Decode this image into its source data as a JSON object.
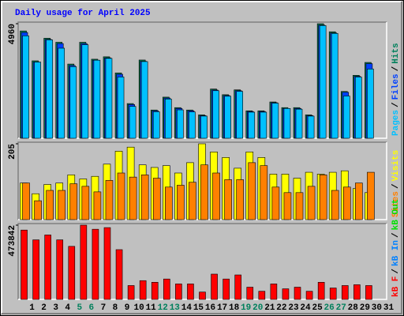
{
  "title": "Daily usage for April 2025",
  "chart_data": [
    {
      "type": "bar",
      "categories": [
        1,
        2,
        3,
        4,
        5,
        6,
        7,
        8,
        9,
        10,
        11,
        12,
        13,
        14,
        15,
        16,
        17,
        18,
        19,
        20,
        21,
        22,
        23,
        24,
        25,
        26,
        27,
        28,
        29,
        30,
        31
      ],
      "series": [
        {
          "name": "Hits",
          "color": "#00805c",
          "values": [
            4646,
            3353,
            4331,
            4157,
            3213,
            4157,
            3423,
            3528,
            2829,
            1502,
            3388,
            1223,
            1781,
            1327,
            1223,
            1013,
            2131,
            1886,
            2096,
            1188,
            1188,
            1572,
            1327,
            1327,
            1013,
            4960,
            4611,
            2026,
            2725,
            3283,
            null
          ]
        },
        {
          "name": "Files",
          "color": "#0040ff",
          "values": [
            4580,
            3300,
            4280,
            4100,
            3150,
            4100,
            3380,
            3480,
            2770,
            1460,
            3330,
            1190,
            1740,
            1290,
            1190,
            980,
            2090,
            1850,
            2060,
            1160,
            1160,
            1540,
            1290,
            1290,
            980,
            4900,
            4560,
            1990,
            2680,
            3230,
            null
          ]
        },
        {
          "name": "Pages",
          "color": "#00c0ff",
          "values": [
            4436,
            3300,
            4260,
            3900,
            3100,
            4050,
            3380,
            3460,
            2654,
            1380,
            3320,
            1150,
            1700,
            1230,
            1140,
            960,
            2060,
            1820,
            2030,
            1130,
            1130,
            1520,
            1290,
            1260,
            960,
            4880,
            4540,
            1830,
            2650,
            3000,
            null
          ]
        }
      ],
      "ylim": [
        0,
        4960
      ],
      "yticks": [
        4960
      ],
      "legend_separator": "/"
    },
    {
      "type": "bar",
      "categories": [
        1,
        2,
        3,
        4,
        5,
        6,
        7,
        8,
        9,
        10,
        11,
        12,
        13,
        14,
        15,
        16,
        17,
        18,
        19,
        20,
        21,
        22,
        23,
        24,
        25,
        26,
        27,
        28,
        29,
        30,
        31
      ],
      "series": [
        {
          "name": "Visits",
          "color": "#ffff00",
          "values": [
            99,
            70,
            95,
            99,
            121,
            110,
            117,
            150,
            185,
            196,
            148,
            141,
            146,
            126,
            154,
            205,
            183,
            168,
            139,
            183,
            168,
            123,
            123,
            112,
            128,
            123,
            128,
            132,
            84,
            73,
            null
          ]
        },
        {
          "name": "Sites",
          "color": "#ff8000",
          "values": [
            99,
            51,
            79,
            79,
            97,
            90,
            75,
            106,
            126,
            115,
            121,
            112,
            88,
            93,
            101,
            148,
            126,
            108,
            108,
            154,
            146,
            88,
            73,
            73,
            90,
            121,
            79,
            88,
            99,
            128,
            null
          ]
        }
      ],
      "ylim": [
        0,
        205
      ],
      "yticks": [
        205
      ],
      "legend_separator": "/"
    },
    {
      "type": "bar",
      "categories": [
        1,
        2,
        3,
        4,
        5,
        6,
        7,
        8,
        9,
        10,
        11,
        12,
        13,
        14,
        15,
        16,
        17,
        18,
        19,
        20,
        21,
        22,
        23,
        24,
        25,
        26,
        27,
        28,
        29,
        30,
        31
      ],
      "category_colors": [
        "#000000",
        "#000000",
        "#000000",
        "#000000",
        "#00805c",
        "#00805c",
        "#000000",
        "#000000",
        "#000000",
        "#000000",
        "#000000",
        "#00805c",
        "#00805c",
        "#000000",
        "#000000",
        "#000000",
        "#000000",
        "#000000",
        "#00805c",
        "#00805c",
        "#000000",
        "#000000",
        "#000000",
        "#000000",
        "#000000",
        "#00805c",
        "#00805c",
        "#000000",
        "#000000",
        "#000000",
        "#000000"
      ],
      "series": [
        {
          "name": "kB F",
          "color": "#ff0000",
          "values": [
            442600,
            380100,
            411300,
            380100,
            338500,
            473842,
            447800,
            458200,
            317600,
            88500,
            119800,
            109400,
            130200,
            98900,
            98900,
            46900,
            161400,
            130200,
            156200,
            78100,
            52100,
            98900,
            67700,
            78100,
            52100,
            109400,
            72900,
            88500,
            93700,
            88500,
            null
          ]
        }
      ],
      "legend_extra": [
        {
          "name": "kB In",
          "color": "#0080ff"
        },
        {
          "name": "kB Out",
          "color": "#00e000"
        }
      ],
      "ylim": [
        0,
        473842
      ],
      "yticks": [
        473842
      ],
      "legend_separator": "/"
    }
  ]
}
